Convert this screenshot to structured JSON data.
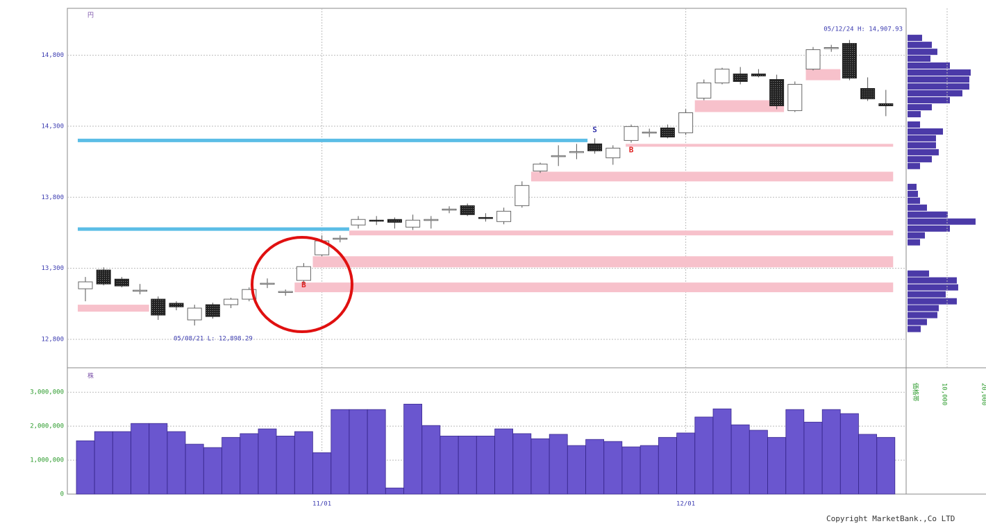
{
  "chart_data": [
    {
      "type": "candlestick",
      "unit_label": "円",
      "open": [
        13156,
        13288,
        13224,
        13141,
        13083,
        13054,
        12937,
        13044,
        13044,
        13083,
        13190,
        13132,
        13215,
        13395,
        13507,
        13605,
        13639,
        13644,
        13590,
        13639,
        13712,
        13741,
        13658,
        13629,
        13741,
        13985,
        14088,
        14117,
        14176,
        14078,
        14200,
        14254,
        14288,
        14254,
        14498,
        14605,
        14668,
        14668,
        14629,
        14410,
        14702,
        14849,
        14883,
        14566,
        14459
      ],
      "high": [
        13239,
        13307,
        13239,
        13190,
        13102,
        13068,
        13044,
        13058,
        13093,
        13166,
        13229,
        13151,
        13337,
        13532,
        13532,
        13668,
        13668,
        13658,
        13678,
        13668,
        13737,
        13756,
        13688,
        13727,
        13912,
        14044,
        14166,
        14176,
        14215,
        14166,
        14312,
        14283,
        14312,
        14420,
        14629,
        14712,
        14717,
        14702,
        14663,
        14615,
        14858,
        14873,
        14907,
        14644,
        14556
      ],
      "low": [
        13068,
        13180,
        13166,
        13117,
        12937,
        13005,
        12898,
        12946,
        13020,
        13068,
        13161,
        13107,
        13190,
        13385,
        13483,
        13580,
        13605,
        13580,
        13570,
        13580,
        13688,
        13668,
        13629,
        13610,
        13727,
        13971,
        14020,
        14068,
        14107,
        14029,
        14185,
        14224,
        14215,
        14239,
        14483,
        14595,
        14595,
        14644,
        14420,
        14400,
        14693,
        14824,
        14624,
        14478,
        14371
      ],
      "close": [
        13205,
        13190,
        13176,
        13146,
        12971,
        13029,
        13020,
        12961,
        13083,
        13151,
        13195,
        13137,
        13312,
        13493,
        13512,
        13644,
        13634,
        13624,
        13639,
        13644,
        13717,
        13678,
        13653,
        13702,
        13883,
        14034,
        14093,
        14122,
        14127,
        14146,
        14298,
        14259,
        14224,
        14395,
        14605,
        14702,
        14615,
        14654,
        14444,
        14595,
        14839,
        14854,
        14639,
        14493,
        14444
      ],
      "ylim": [
        12600,
        15130
      ],
      "yticks": [
        {
          "value": 12800,
          "label": "12,800"
        },
        {
          "value": 13300,
          "label": "13,300"
        },
        {
          "value": 13800,
          "label": "13,800"
        },
        {
          "value": 14300,
          "label": "14,300"
        },
        {
          "value": 14800,
          "label": "14,800"
        }
      ],
      "xticks": [
        {
          "value": 13,
          "label": "11/01"
        },
        {
          "value": 33,
          "label": "12/01"
        }
      ],
      "grid": true,
      "annotations": [
        {
          "text": "05/12/24 H: 14,907.93"
        },
        {
          "text": "05/08/21 L: 12,898.29"
        }
      ],
      "lines": [
        {
          "value": 14200,
          "x0": -0.42,
          "x1": 27.6,
          "color": "#5bbde6"
        },
        {
          "value": 13576,
          "x0": -0.42,
          "x1": 14.5,
          "color": "#5bbde6"
        }
      ],
      "bands": [
        {
          "x0": -0.42,
          "x1": 3.5,
          "low": 12995,
          "high": 13044
        },
        {
          "x0": 11.5,
          "x1": 44.4,
          "low": 13132,
          "high": 13200
        },
        {
          "x0": 12.5,
          "x1": 44.4,
          "low": 13307,
          "high": 13385
        },
        {
          "x0": 14.5,
          "x1": 44.4,
          "low": 13532,
          "high": 13566
        },
        {
          "x0": 24.5,
          "x1": 44.4,
          "low": 13912,
          "high": 13980
        },
        {
          "x0": 29.7,
          "x1": 44.4,
          "low": 14156,
          "high": 14176
        },
        {
          "x0": 33.5,
          "x1": 38.4,
          "low": 14400,
          "high": 14483
        },
        {
          "x0": 39.6,
          "x1": 41.5,
          "low": 14624,
          "high": 14702
        }
      ],
      "band_color": "#f7c1cb",
      "signals": [
        {
          "text": "S",
          "x": 28,
          "value": 14273,
          "color": "#3333aa"
        },
        {
          "text": "B",
          "x": 12,
          "value": 13180,
          "color": "#e02020"
        },
        {
          "text": "B",
          "x": 30,
          "value": 14132,
          "color": "#e02020"
        }
      ]
    },
    {
      "type": "bar",
      "unit_label": "株",
      "values": [
        1570000,
        1840000,
        1840000,
        2080000,
        2080000,
        1840000,
        1470000,
        1370000,
        1670000,
        1780000,
        1920000,
        1710000,
        1840000,
        1220000,
        2490000,
        2490000,
        2490000,
        180000,
        2650000,
        2020000,
        1710000,
        1710000,
        1710000,
        1920000,
        1780000,
        1630000,
        1760000,
        1430000,
        1610000,
        1550000,
        1390000,
        1430000,
        1670000,
        1800000,
        2270000,
        2510000,
        2040000,
        1880000,
        1670000,
        2490000,
        2120000,
        2490000,
        2370000,
        1760000,
        1670000
      ],
      "ylim": [
        0,
        3720000
      ],
      "yticks": [
        0,
        {
          "value": 1000000,
          "label": "1,000,000"
        },
        {
          "value": 2000000,
          "label": "2,000,000"
        },
        {
          "value": 3000000,
          "label": "3,000,000"
        }
      ],
      "color": "#6a56cf"
    },
    {
      "type": "barh",
      "label": "価格帯",
      "prices": [
        14922,
        14873,
        14824,
        14776,
        14727,
        14678,
        14629,
        14580,
        14532,
        14483,
        14434,
        14385,
        14312,
        14263,
        14215,
        14166,
        14117,
        14068,
        14020,
        13873,
        13824,
        13776,
        13727,
        13678,
        13629,
        13580,
        13532,
        13483,
        13263,
        13215,
        13166,
        13117,
        13068,
        13020,
        12971,
        12922,
        12873
      ],
      "values": [
        3680,
        6140,
        7540,
        5790,
        10700,
        15960,
        15610,
        15610,
        13860,
        10700,
        6140,
        3330,
        3160,
        8950,
        7190,
        7190,
        7890,
        6140,
        3160,
        2280,
        2630,
        3160,
        4910,
        10170,
        17190,
        10700,
        4390,
        3160,
        5440,
        12450,
        12800,
        9650,
        12450,
        7890,
        7540,
        4910,
        3330
      ],
      "xlim": [
        0,
        20000
      ],
      "xticks": [
        {
          "value": 10000,
          "label": "10,000"
        },
        {
          "value": 20000,
          "label": "20,000"
        }
      ],
      "color": "#4b3aa8"
    }
  ],
  "copyright": "Copyright MarketBank.,Co LTD"
}
